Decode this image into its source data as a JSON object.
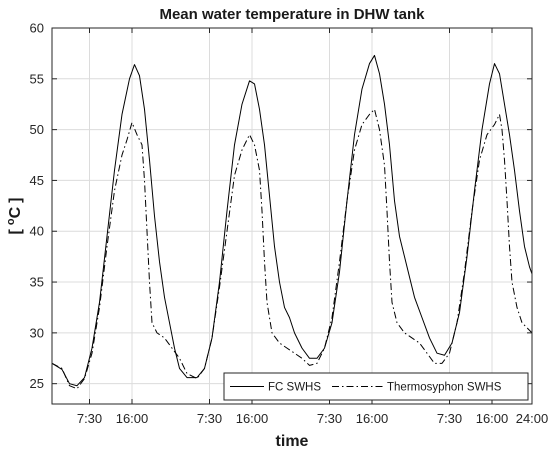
{
  "chart_data": {
    "type": "line",
    "title": "Mean water temperature in DHW tank",
    "xlabel": "time",
    "ylabel": "[ °C ]",
    "ylabel_parts": {
      "open": "[",
      "degree": "o",
      "unit": "C",
      "close": "]"
    },
    "ylim": [
      23,
      60
    ],
    "xlim": [
      0,
      96
    ],
    "yticks": [
      25,
      30,
      35,
      40,
      45,
      50,
      55,
      60
    ],
    "xticks": [
      {
        "x": 7.5,
        "label": "7:30"
      },
      {
        "x": 16,
        "label": "16:00"
      },
      {
        "x": 31.5,
        "label": "7:30"
      },
      {
        "x": 40,
        "label": "16:00"
      },
      {
        "x": 55.5,
        "label": "7:30"
      },
      {
        "x": 64,
        "label": "16:00"
      },
      {
        "x": 79.5,
        "label": "7:30"
      },
      {
        "x": 88,
        "label": "16:00"
      },
      {
        "x": 96,
        "label": "24:00"
      }
    ],
    "grid": true,
    "legend_position": "bottom-right",
    "series": [
      {
        "name": "FC SWHS",
        "style": "solid",
        "color": "#000000",
        "points": [
          [
            0,
            27.0
          ],
          [
            2,
            26.4
          ],
          [
            3.5,
            25.0
          ],
          [
            5,
            24.8
          ],
          [
            6.5,
            25.6
          ],
          [
            8,
            28.5
          ],
          [
            9.5,
            33.0
          ],
          [
            11,
            39.5
          ],
          [
            12.5,
            46.0
          ],
          [
            14,
            51.5
          ],
          [
            15.5,
            55.0
          ],
          [
            16.5,
            56.4
          ],
          [
            17.5,
            55.3
          ],
          [
            18.5,
            52.0
          ],
          [
            19.5,
            47.0
          ],
          [
            20.5,
            41.5
          ],
          [
            21.5,
            37.0
          ],
          [
            22.5,
            33.5
          ],
          [
            23.5,
            31.0
          ],
          [
            24.5,
            28.5
          ],
          [
            25.5,
            26.5
          ],
          [
            27,
            25.6
          ],
          [
            29,
            25.6
          ],
          [
            30.5,
            26.5
          ],
          [
            32,
            29.5
          ],
          [
            33.5,
            35.0
          ],
          [
            35,
            42.0
          ],
          [
            36.5,
            48.5
          ],
          [
            38,
            52.5
          ],
          [
            39.5,
            54.8
          ],
          [
            40.5,
            54.5
          ],
          [
            41.5,
            52.0
          ],
          [
            42.5,
            48.5
          ],
          [
            43.5,
            43.5
          ],
          [
            44.5,
            38.5
          ],
          [
            45.5,
            35.0
          ],
          [
            46.5,
            32.5
          ],
          [
            47.5,
            31.5
          ],
          [
            48.5,
            30.0
          ],
          [
            50,
            28.5
          ],
          [
            51.5,
            27.5
          ],
          [
            53,
            27.5
          ],
          [
            54.5,
            28.5
          ],
          [
            56,
            31.0
          ],
          [
            57.5,
            36.0
          ],
          [
            59,
            43.0
          ],
          [
            60.5,
            49.5
          ],
          [
            62,
            54.0
          ],
          [
            63.5,
            56.5
          ],
          [
            64.5,
            57.3
          ],
          [
            65.5,
            55.5
          ],
          [
            66.5,
            52.5
          ],
          [
            67.5,
            48.5
          ],
          [
            68.5,
            43.0
          ],
          [
            69.5,
            39.5
          ],
          [
            70.5,
            37.5
          ],
          [
            71.5,
            35.5
          ],
          [
            72.5,
            33.5
          ],
          [
            74,
            31.5
          ],
          [
            75.5,
            29.5
          ],
          [
            77,
            28.0
          ],
          [
            78.5,
            27.8
          ],
          [
            80,
            29.0
          ],
          [
            81.5,
            32.0
          ],
          [
            83,
            37.5
          ],
          [
            84.5,
            44.0
          ],
          [
            86,
            50.0
          ],
          [
            87.5,
            54.5
          ],
          [
            88.5,
            56.5
          ],
          [
            89.5,
            55.5
          ],
          [
            90.5,
            52.5
          ],
          [
            91.5,
            49.5
          ],
          [
            92.5,
            46.0
          ],
          [
            93.5,
            42.0
          ],
          [
            94.5,
            38.5
          ],
          [
            95.5,
            36.5
          ],
          [
            96,
            35.8
          ]
        ]
      },
      {
        "name": "Thermosyphon SWHS",
        "style": "dashdot",
        "color": "#000000",
        "points": [
          [
            0,
            27.0
          ],
          [
            2,
            26.5
          ],
          [
            3.5,
            24.8
          ],
          [
            5,
            24.5
          ],
          [
            6.5,
            25.5
          ],
          [
            8,
            28.0
          ],
          [
            9.5,
            32.5
          ],
          [
            11,
            38.5
          ],
          [
            12.5,
            44.0
          ],
          [
            14,
            47.5
          ],
          [
            15,
            49.0
          ],
          [
            16,
            50.7
          ],
          [
            17,
            49.5
          ],
          [
            18,
            48.5
          ],
          [
            18.5,
            45.0
          ],
          [
            19,
            40.0
          ],
          [
            19.5,
            35.0
          ],
          [
            20,
            31.0
          ],
          [
            21,
            30.0
          ],
          [
            22.5,
            29.5
          ],
          [
            24,
            28.5
          ],
          [
            25.5,
            27.5
          ],
          [
            27,
            26.0
          ],
          [
            29,
            25.5
          ],
          [
            30.5,
            26.5
          ],
          [
            32,
            29.5
          ],
          [
            33.5,
            34.5
          ],
          [
            35,
            40.0
          ],
          [
            36.5,
            45.5
          ],
          [
            38,
            48.0
          ],
          [
            39.5,
            49.5
          ],
          [
            40.5,
            48.5
          ],
          [
            41.5,
            46.0
          ],
          [
            42,
            42.0
          ],
          [
            42.5,
            37.0
          ],
          [
            43,
            33.0
          ],
          [
            44,
            30.0
          ],
          [
            45.5,
            29.0
          ],
          [
            47,
            28.5
          ],
          [
            48.5,
            28.0
          ],
          [
            50,
            27.5
          ],
          [
            51.5,
            26.8
          ],
          [
            53,
            27.0
          ],
          [
            54.5,
            28.5
          ],
          [
            56,
            31.5
          ],
          [
            57.5,
            37.0
          ],
          [
            59,
            43.0
          ],
          [
            60.5,
            48.0
          ],
          [
            62,
            50.5
          ],
          [
            63.5,
            51.5
          ],
          [
            64.5,
            52.0
          ],
          [
            65.5,
            50.0
          ],
          [
            66.5,
            46.5
          ],
          [
            67,
            42.0
          ],
          [
            67.5,
            37.0
          ],
          [
            68,
            33.0
          ],
          [
            69,
            31.0
          ],
          [
            70.5,
            30.0
          ],
          [
            72,
            29.5
          ],
          [
            73.5,
            29.0
          ],
          [
            75,
            28.0
          ],
          [
            76.5,
            27.0
          ],
          [
            78,
            27.0
          ],
          [
            79.5,
            28.0
          ],
          [
            81,
            31.0
          ],
          [
            82.5,
            36.0
          ],
          [
            84,
            42.0
          ],
          [
            85.5,
            47.0
          ],
          [
            87,
            49.5
          ],
          [
            88.5,
            50.5
          ],
          [
            89.5,
            51.5
          ],
          [
            90,
            50.0
          ],
          [
            90.5,
            47.0
          ],
          [
            91,
            43.0
          ],
          [
            91.5,
            38.5
          ],
          [
            92,
            35.0
          ],
          [
            93,
            32.5
          ],
          [
            94,
            31.0
          ],
          [
            95,
            30.5
          ],
          [
            96,
            30.0
          ]
        ]
      }
    ]
  }
}
